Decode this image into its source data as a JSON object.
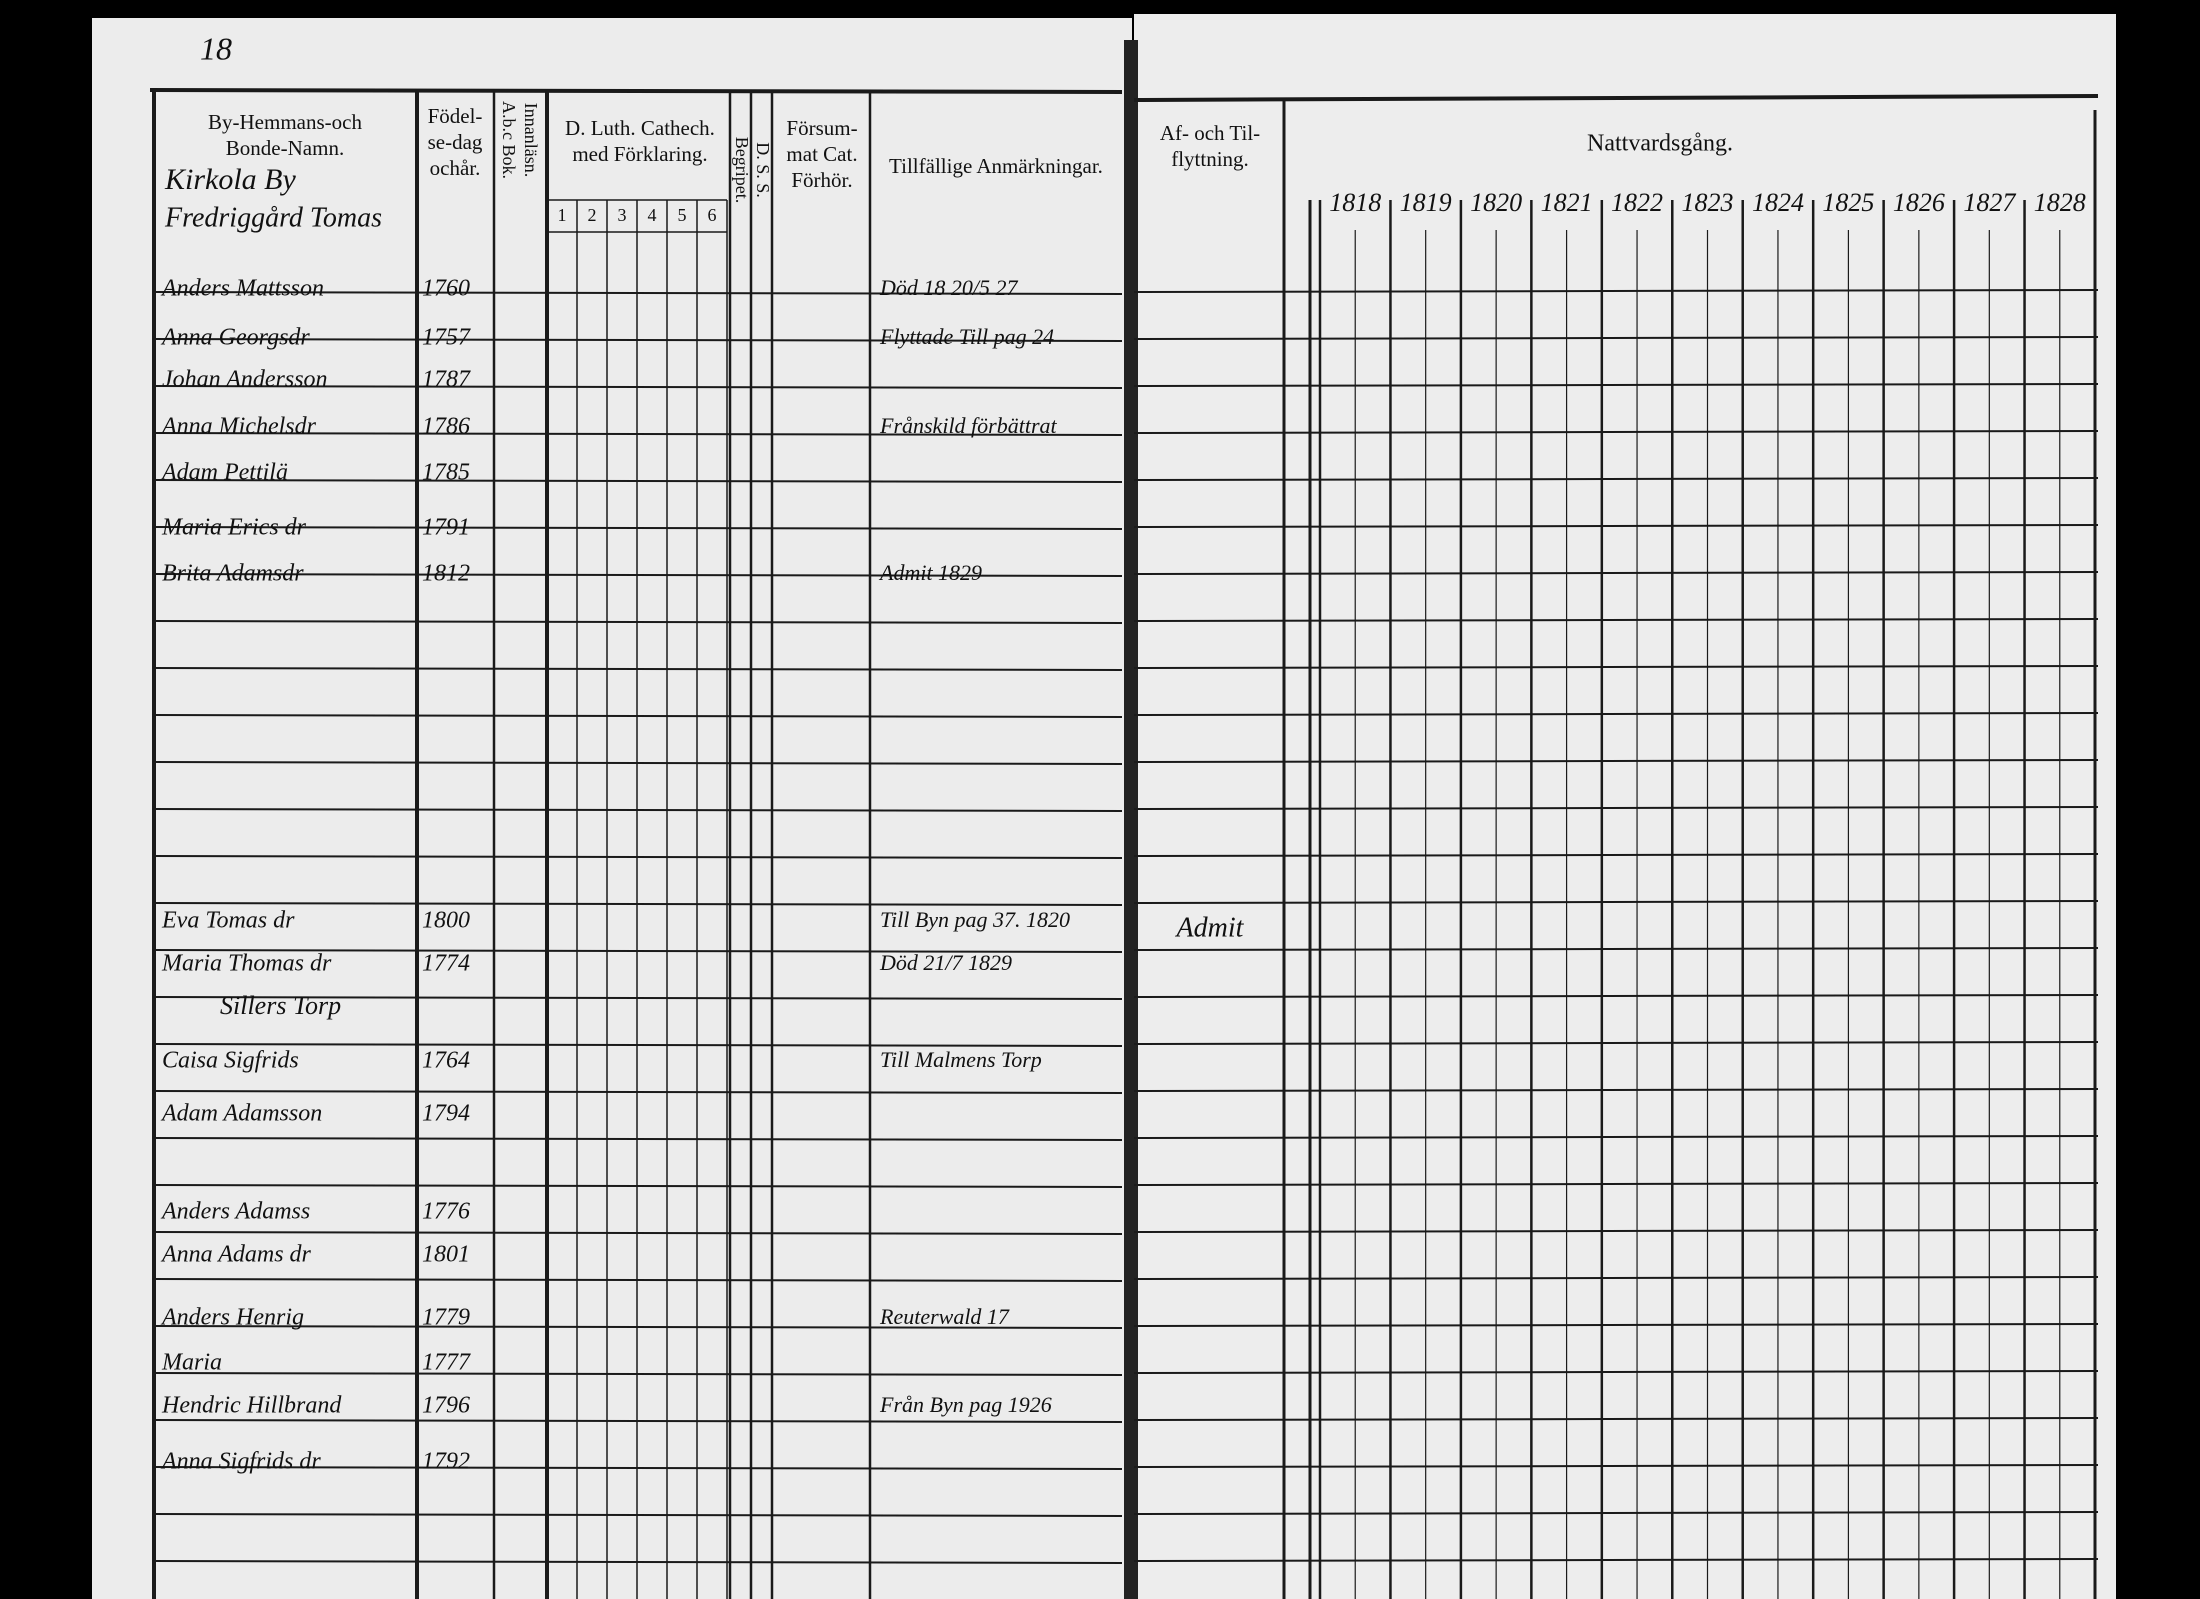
{
  "page_number": "18",
  "left_page": {
    "columns": [
      {
        "lines": [
          "By-Hemmans-och",
          "Bonde-Namn."
        ]
      },
      {
        "lines": [
          "Födel-",
          "se-dag",
          "ochår."
        ]
      },
      {
        "lines": [
          "A.b.c Bok.",
          "Innanläsn."
        ]
      },
      {
        "lines": [
          "D. Luth. Cathech.",
          "med Förklaring."
        ]
      },
      {
        "lines": [
          "Begripet."
        ]
      },
      {
        "lines": [
          "D. S. S."
        ]
      },
      {
        "lines": [
          "Försum-",
          "mat Cat.",
          "Förhör."
        ]
      },
      {
        "lines": [
          "Tillfällige Anmärkningar."
        ]
      }
    ],
    "catechism_parts": [
      "1",
      "2",
      "3",
      "4",
      "5",
      "6"
    ],
    "village": "Kirkola By",
    "farm": "Fredriggård Tomas",
    "croft": "Sillers Torp",
    "entries": [
      {
        "name": "Anders Mattsson",
        "birth": "1760",
        "remark": "Död 18 20/5 27"
      },
      {
        "name": "Anna Georgsdr",
        "birth": "1757",
        "remark": "Flyttade Till pag 24"
      },
      {
        "name": "Johan Andersson",
        "birth": "1787"
      },
      {
        "name": "Anna Michelsdr",
        "birth": "1786",
        "remark": "Frånskild förbättrat"
      },
      {
        "name": "Adam Pettilä",
        "birth": "1785"
      },
      {
        "name": "Maria Erics dr",
        "birth": "1791"
      },
      {
        "name": "Brita Adamsdr",
        "birth": "1812",
        "remark": "Admit 1829"
      },
      {
        "name": "Eva Tomas dr",
        "birth": "1800",
        "remark": "Till Byn pag 37. 1820"
      },
      {
        "name": "Maria Thomas dr",
        "birth": "1774",
        "remark": "Död 21/7 1829"
      },
      {
        "name": "Caisa Sigfrids",
        "birth": "1764",
        "remark": "Till Malmens Torp"
      },
      {
        "name": "Adam Adamsson",
        "birth": "1794"
      },
      {
        "name": "Anders Adamss",
        "birth": "1776"
      },
      {
        "name": "Anna Adams dr",
        "birth": "1801"
      },
      {
        "name": "Anders Henrig",
        "birth": "1779",
        "remark": "Reuterwald 17"
      },
      {
        "name": "Maria",
        "birth": "1777"
      },
      {
        "name": "Hendric Hillbrand",
        "birth": "1796",
        "remark": "Från Byn pag 1926"
      },
      {
        "name": "Anna Sigfrids dr",
        "birth": "1792"
      }
    ]
  },
  "right_page": {
    "moving_header": [
      "Af- och Til-",
      "flyttning."
    ],
    "communion_header": "Nattvardsgång.",
    "years": [
      "1818",
      "1819",
      "1820",
      "1821",
      "1822",
      "1823",
      "1824",
      "1825",
      "1826",
      "1827",
      "1828"
    ],
    "moving_note": "Admit"
  }
}
